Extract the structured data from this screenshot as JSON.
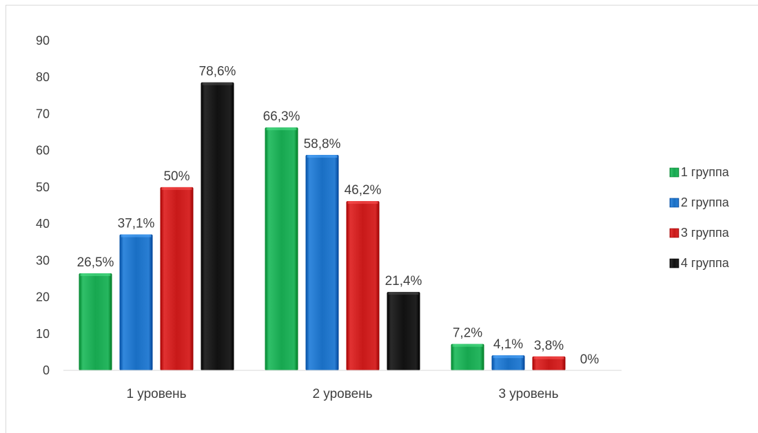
{
  "chart_data": {
    "type": "bar",
    "title": "",
    "xlabel": "",
    "ylabel": "",
    "categories": [
      "1 уровень",
      "2 уровень",
      "3 уровень"
    ],
    "ylim": [
      0,
      90
    ],
    "yticks": [
      0,
      10,
      20,
      30,
      40,
      50,
      60,
      70,
      80,
      90
    ],
    "grid": false,
    "legend_position": "right",
    "series": [
      {
        "name": "1 группа",
        "color": "#17a750",
        "values": [
          26.5,
          66.3,
          7.2
        ],
        "labels": [
          "26,5%",
          "66,3%",
          "7,2%"
        ]
      },
      {
        "name": "2 группа",
        "color": "#1a6fc4",
        "values": [
          37.1,
          58.8,
          4.1
        ],
        "labels": [
          "37,1%",
          "58,8%",
          "4,1%"
        ]
      },
      {
        "name": "3 группа",
        "color": "#c81919",
        "values": [
          50,
          46.2,
          3.8
        ],
        "labels": [
          "50%",
          "46,2%",
          "3,8%"
        ]
      },
      {
        "name": "4 группа",
        "color": "#111111",
        "values": [
          78.6,
          21.4,
          0
        ],
        "labels": [
          "78,6%",
          "21,4%",
          "0%"
        ]
      }
    ]
  }
}
